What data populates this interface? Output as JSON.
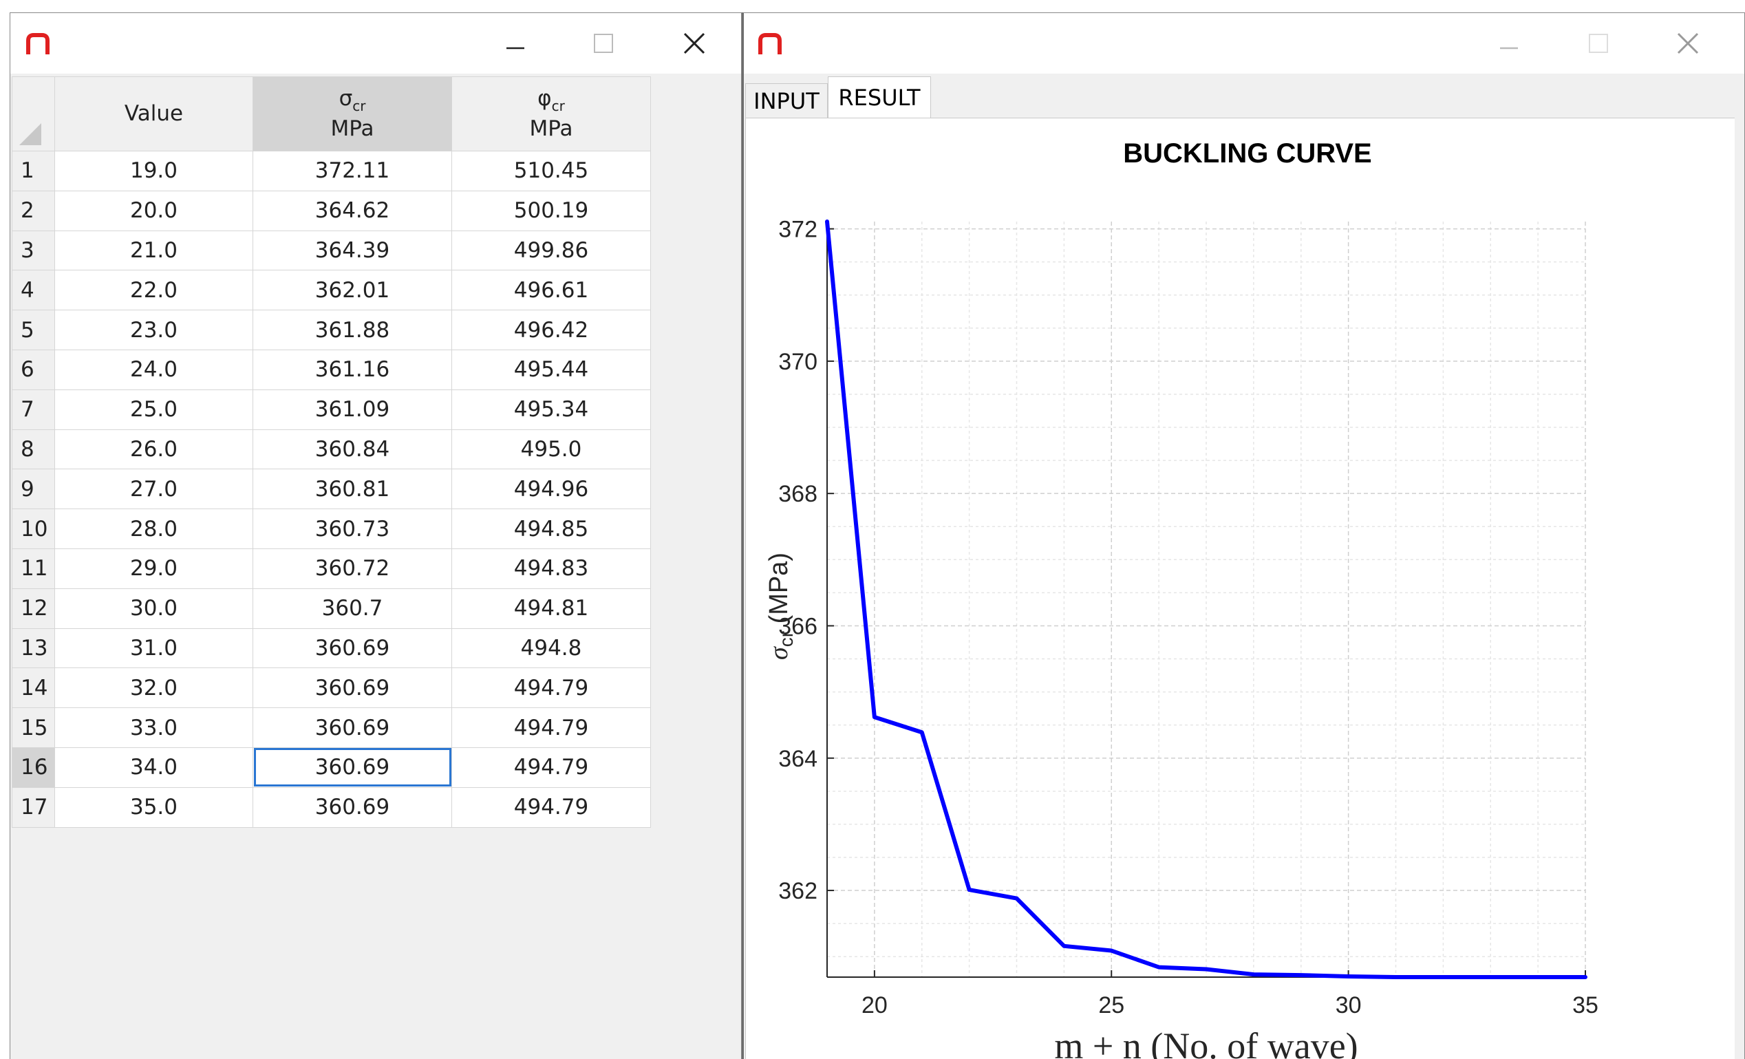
{
  "left_window": {
    "title": "",
    "table": {
      "headers": [
        {
          "main": "Value",
          "sub": "",
          "unit": ""
        },
        {
          "main": "σ",
          "sub": "cr",
          "unit": "MPa"
        },
        {
          "main": "φ",
          "sub": "cr",
          "unit": "MPa"
        }
      ],
      "rows": [
        {
          "n": "1",
          "value": "19.0",
          "sigma": "372.11",
          "phi": "510.45"
        },
        {
          "n": "2",
          "value": "20.0",
          "sigma": "364.62",
          "phi": "500.19"
        },
        {
          "n": "3",
          "value": "21.0",
          "sigma": "364.39",
          "phi": "499.86"
        },
        {
          "n": "4",
          "value": "22.0",
          "sigma": "362.01",
          "phi": "496.61"
        },
        {
          "n": "5",
          "value": "23.0",
          "sigma": "361.88",
          "phi": "496.42"
        },
        {
          "n": "6",
          "value": "24.0",
          "sigma": "361.16",
          "phi": "495.44"
        },
        {
          "n": "7",
          "value": "25.0",
          "sigma": "361.09",
          "phi": "495.34"
        },
        {
          "n": "8",
          "value": "26.0",
          "sigma": "360.84",
          "phi": "495.0"
        },
        {
          "n": "9",
          "value": "27.0",
          "sigma": "360.81",
          "phi": "494.96"
        },
        {
          "n": "10",
          "value": "28.0",
          "sigma": "360.73",
          "phi": "494.85"
        },
        {
          "n": "11",
          "value": "29.0",
          "sigma": "360.72",
          "phi": "494.83"
        },
        {
          "n": "12",
          "value": "30.0",
          "sigma": "360.7",
          "phi": "494.81"
        },
        {
          "n": "13",
          "value": "31.0",
          "sigma": "360.69",
          "phi": "494.8"
        },
        {
          "n": "14",
          "value": "32.0",
          "sigma": "360.69",
          "phi": "494.79"
        },
        {
          "n": "15",
          "value": "33.0",
          "sigma": "360.69",
          "phi": "494.79"
        },
        {
          "n": "16",
          "value": "34.0",
          "sigma": "360.69",
          "phi": "494.79"
        },
        {
          "n": "17",
          "value": "35.0",
          "sigma": "360.69",
          "phi": "494.79"
        }
      ],
      "selected_row": 16,
      "selected_column": 1
    }
  },
  "right_window": {
    "title": "",
    "tabs": [
      {
        "label": "INPUT",
        "active": false
      },
      {
        "label": "RESULT",
        "active": true
      }
    ]
  },
  "colors": {
    "logo": "#e02020",
    "curve": "#0000ff",
    "selection_border": "#2a76d2"
  },
  "icons": [
    "app-logo-icon",
    "minimize-icon",
    "maximize-icon",
    "close-icon"
  ],
  "chart_data": {
    "type": "line",
    "title": "BUCKLING CURVE",
    "xlabel": "m + n (No. of wave)",
    "ylabel_symbol": "σ",
    "ylabel_sub": "cr",
    "ylabel_unit": "(MPa)",
    "x": [
      19,
      20,
      21,
      22,
      23,
      24,
      25,
      26,
      27,
      28,
      29,
      30,
      31,
      32,
      33,
      34,
      35
    ],
    "series": [
      {
        "values": [
          372.11,
          364.62,
          364.39,
          362.01,
          361.88,
          361.16,
          361.09,
          360.84,
          360.81,
          360.73,
          360.72,
          360.7,
          360.69,
          360.69,
          360.69,
          360.69,
          360.69
        ]
      }
    ],
    "xlim": [
      19,
      35
    ],
    "ylim": [
      360.69,
      372.11
    ],
    "xticks": [
      20,
      25,
      30,
      35
    ],
    "yticks": [
      362,
      364,
      366,
      368,
      370,
      372
    ],
    "grid": true,
    "minor_grid": true
  }
}
